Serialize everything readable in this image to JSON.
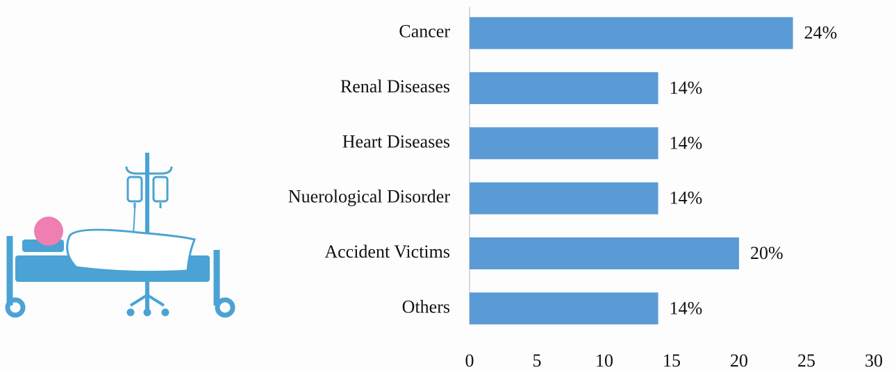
{
  "chart_data": {
    "type": "bar",
    "orientation": "horizontal",
    "categories": [
      "Cancer",
      "Renal Diseases",
      "Heart Diseases",
      "Nuerological Disorder",
      "Accident Victims",
      "Others"
    ],
    "values": [
      24,
      14,
      14,
      14,
      20,
      14
    ],
    "value_labels": [
      "24%",
      "14%",
      "14%",
      "14%",
      "20%",
      "14%"
    ],
    "color": "#5b9bd5",
    "xlim": [
      0,
      30
    ],
    "xticks": [
      0,
      5,
      10,
      15,
      20,
      25,
      30
    ],
    "grid": false
  }
}
